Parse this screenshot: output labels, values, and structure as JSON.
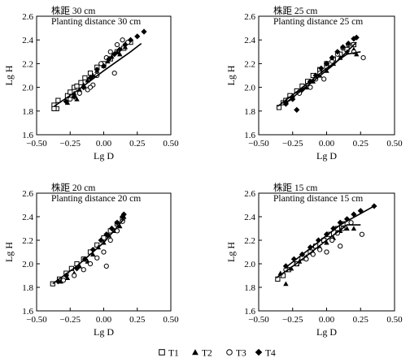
{
  "chart_data": [
    {
      "type": "scatter",
      "title_cn": "株距 30 cm",
      "title_en": "Planting distance 30 cm",
      "xlabel": "Lg D",
      "ylabel": "Lg H",
      "xlim": [
        -0.5,
        0.5
      ],
      "ylim": [
        1.6,
        2.6
      ],
      "xticks": [
        "−0.50",
        "−0.25",
        "0.00",
        "0.25",
        "0.50"
      ],
      "yticks": [
        "1.6",
        "1.8",
        "2.0",
        "2.2",
        "2.4",
        "2.6"
      ],
      "series": [
        {
          "name": "T1",
          "points": [
            [
              -0.37,
              1.85
            ],
            [
              -0.35,
              1.82
            ],
            [
              -0.37,
              1.82
            ],
            [
              -0.34,
              1.89
            ],
            [
              -0.27,
              1.93
            ],
            [
              -0.25,
              1.96
            ],
            [
              -0.22,
              2.0
            ],
            [
              -0.2,
              2.01
            ],
            [
              -0.17,
              2.04
            ],
            [
              -0.14,
              2.08
            ],
            [
              -0.1,
              2.12
            ],
            [
              -0.05,
              2.17
            ],
            [
              0.0,
              2.2
            ],
            [
              0.05,
              2.24
            ],
            [
              0.1,
              2.3
            ],
            [
              0.15,
              2.33
            ],
            [
              0.2,
              2.38
            ]
          ]
        },
        {
          "name": "T2",
          "points": [
            [
              -0.27,
              1.87
            ],
            [
              -0.22,
              1.95
            ],
            [
              -0.2,
              1.9
            ],
            [
              -0.18,
              1.98
            ],
            [
              -0.15,
              2.02
            ],
            [
              -0.12,
              2.06
            ],
            [
              -0.08,
              2.1
            ],
            [
              -0.05,
              2.14
            ],
            [
              0.0,
              2.18
            ],
            [
              0.03,
              2.22
            ],
            [
              0.06,
              2.26
            ],
            [
              0.1,
              2.3
            ],
            [
              0.12,
              2.28
            ],
            [
              0.16,
              2.34
            ]
          ]
        },
        {
          "name": "T3",
          "points": [
            [
              -0.25,
              1.9
            ],
            [
              -0.18,
              1.95
            ],
            [
              -0.12,
              1.98
            ],
            [
              -0.08,
              2.02
            ],
            [
              -0.05,
              2.1
            ],
            [
              -0.02,
              2.2
            ],
            [
              0.02,
              2.25
            ],
            [
              0.05,
              2.3
            ],
            [
              0.08,
              2.12
            ],
            [
              0.1,
              2.36
            ],
            [
              0.14,
              2.4
            ],
            [
              0.18,
              2.38
            ],
            [
              -0.1,
              2.0
            ]
          ]
        },
        {
          "name": "T4",
          "points": [
            [
              -0.28,
              1.88
            ],
            [
              -0.22,
              1.92
            ],
            [
              -0.15,
              2.0
            ],
            [
              -0.1,
              2.08
            ],
            [
              -0.05,
              2.15
            ],
            [
              0.0,
              2.18
            ],
            [
              0.04,
              2.24
            ],
            [
              0.08,
              2.28
            ],
            [
              0.12,
              2.32
            ],
            [
              0.16,
              2.36
            ],
            [
              0.2,
              2.4
            ],
            [
              0.25,
              2.43
            ],
            [
              0.3,
              2.47
            ]
          ]
        }
      ],
      "fits": [
        [
          [
            -0.37,
            1.84
          ],
          [
            -0.2,
            1.97
          ],
          [
            0.0,
            2.14
          ],
          [
            0.2,
            2.3
          ],
          [
            0.28,
            2.37
          ]
        ]
      ]
    },
    {
      "type": "scatter",
      "title_cn": "株距 25 cm",
      "title_en": "Planting distance 25 cm",
      "xlabel": "Lg D",
      "ylabel": "Lg H",
      "xlim": [
        -0.5,
        0.5
      ],
      "ylim": [
        1.6,
        2.6
      ],
      "xticks": [
        "−0.50",
        "−0.25",
        "0.00",
        "0.25",
        "0.50"
      ],
      "yticks": [
        "1.6",
        "1.8",
        "2.0",
        "2.2",
        "2.4",
        "2.6"
      ],
      "series": [
        {
          "name": "T1",
          "points": [
            [
              -0.35,
              1.83
            ],
            [
              -0.32,
              1.87
            ],
            [
              -0.3,
              1.89
            ],
            [
              -0.27,
              1.93
            ],
            [
              -0.22,
              1.97
            ],
            [
              -0.18,
              2.01
            ],
            [
              -0.14,
              2.05
            ],
            [
              -0.1,
              2.1
            ],
            [
              -0.05,
              2.15
            ],
            [
              0.0,
              2.2
            ],
            [
              0.05,
              2.24
            ],
            [
              0.1,
              2.28
            ],
            [
              0.15,
              2.32
            ],
            [
              0.2,
              2.36
            ]
          ]
        },
        {
          "name": "T2",
          "points": [
            [
              -0.3,
              1.88
            ],
            [
              -0.25,
              1.93
            ],
            [
              -0.2,
              1.96
            ],
            [
              -0.15,
              2.0
            ],
            [
              -0.1,
              2.05
            ],
            [
              -0.05,
              2.1
            ],
            [
              0.0,
              2.14
            ],
            [
              0.05,
              2.2
            ],
            [
              0.1,
              2.25
            ],
            [
              0.15,
              2.3
            ],
            [
              0.2,
              2.32
            ],
            [
              0.22,
              2.28
            ]
          ]
        },
        {
          "name": "T3",
          "points": [
            [
              -0.28,
              1.9
            ],
            [
              -0.2,
              1.95
            ],
            [
              -0.12,
              2.0
            ],
            [
              -0.08,
              2.07
            ],
            [
              -0.05,
              2.12
            ],
            [
              0.0,
              2.17
            ],
            [
              0.04,
              2.22
            ],
            [
              0.08,
              2.28
            ],
            [
              0.12,
              2.33
            ],
            [
              0.16,
              2.36
            ],
            [
              0.2,
              2.3
            ],
            [
              0.27,
              2.25
            ],
            [
              -0.02,
              2.07
            ]
          ]
        },
        {
          "name": "T4",
          "points": [
            [
              -0.3,
              1.86
            ],
            [
              -0.25,
              1.9
            ],
            [
              -0.22,
              1.81
            ],
            [
              -0.18,
              1.98
            ],
            [
              -0.12,
              2.05
            ],
            [
              -0.08,
              2.1
            ],
            [
              -0.04,
              2.16
            ],
            [
              0.0,
              2.2
            ],
            [
              0.04,
              2.25
            ],
            [
              0.08,
              2.3
            ],
            [
              0.12,
              2.34
            ],
            [
              0.16,
              2.37
            ],
            [
              0.2,
              2.41
            ],
            [
              0.22,
              2.42
            ]
          ]
        }
      ],
      "fits": [
        [
          [
            -0.36,
            1.84
          ],
          [
            -0.2,
            1.98
          ],
          [
            0.0,
            2.16
          ],
          [
            0.15,
            2.28
          ],
          [
            0.25,
            2.3
          ]
        ],
        [
          [
            -0.3,
            1.87
          ],
          [
            -0.1,
            2.05
          ],
          [
            0.05,
            2.19
          ],
          [
            0.22,
            2.38
          ]
        ]
      ]
    },
    {
      "type": "scatter",
      "title_cn": "株距 20 cm",
      "title_en": "Planting distance 20 cm",
      "xlabel": "Lg D",
      "ylabel": "Lg H",
      "xlim": [
        -0.5,
        0.5
      ],
      "ylim": [
        1.6,
        2.6
      ],
      "xticks": [
        "−0.50",
        "−0.25",
        "0.00",
        "0.25",
        "0.50"
      ],
      "yticks": [
        "1.6",
        "1.8",
        "2.0",
        "2.2",
        "2.4",
        "2.6"
      ],
      "series": [
        {
          "name": "T1",
          "points": [
            [
              -0.38,
              1.83
            ],
            [
              -0.33,
              1.87
            ],
            [
              -0.28,
              1.92
            ],
            [
              -0.24,
              1.96
            ],
            [
              -0.2,
              2.0
            ],
            [
              -0.15,
              2.04
            ],
            [
              -0.1,
              2.1
            ],
            [
              -0.05,
              2.16
            ],
            [
              0.0,
              2.22
            ],
            [
              0.05,
              2.28
            ],
            [
              0.1,
              2.34
            ],
            [
              0.14,
              2.38
            ]
          ]
        },
        {
          "name": "T2",
          "points": [
            [
              -0.32,
              1.85
            ],
            [
              -0.27,
              1.88
            ],
            [
              -0.22,
              1.92
            ],
            [
              -0.18,
              1.98
            ],
            [
              -0.12,
              2.02
            ],
            [
              -0.08,
              2.08
            ],
            [
              -0.04,
              2.14
            ],
            [
              0.0,
              2.18
            ],
            [
              0.04,
              2.24
            ],
            [
              0.08,
              2.28
            ],
            [
              0.12,
              2.32
            ],
            [
              0.15,
              2.4
            ]
          ]
        },
        {
          "name": "T3",
          "points": [
            [
              -0.3,
              1.86
            ],
            [
              -0.22,
              1.9
            ],
            [
              -0.15,
              1.95
            ],
            [
              -0.1,
              2.0
            ],
            [
              -0.05,
              2.05
            ],
            [
              0.0,
              2.1
            ],
            [
              0.02,
              1.98
            ],
            [
              0.05,
              2.2
            ],
            [
              0.1,
              2.28
            ],
            [
              0.14,
              2.36
            ]
          ]
        },
        {
          "name": "T4",
          "points": [
            [
              -0.34,
              1.85
            ],
            [
              -0.28,
              1.9
            ],
            [
              -0.2,
              1.96
            ],
            [
              -0.14,
              2.04
            ],
            [
              -0.08,
              2.12
            ],
            [
              -0.02,
              2.2
            ],
            [
              0.02,
              2.25
            ],
            [
              0.06,
              2.3
            ],
            [
              0.1,
              2.35
            ],
            [
              0.14,
              2.4
            ],
            [
              0.15,
              2.42
            ]
          ]
        }
      ],
      "fits": [
        [
          [
            -0.38,
            1.83
          ],
          [
            -0.2,
            1.98
          ],
          [
            0.0,
            2.18
          ],
          [
            0.15,
            2.38
          ]
        ]
      ]
    },
    {
      "type": "scatter",
      "title_cn": "株距 15 cm",
      "title_en": "Planting distance 15 cm",
      "xlabel": "Lg D",
      "ylabel": "Lg H",
      "xlim": [
        -0.5,
        0.5
      ],
      "ylim": [
        1.6,
        2.6
      ],
      "xticks": [
        "−0.50",
        "−0.25",
        "0.00",
        "0.25",
        "0.50"
      ],
      "yticks": [
        "1.6",
        "1.8",
        "2.0",
        "2.2",
        "2.4",
        "2.6"
      ],
      "series": [
        {
          "name": "T1",
          "points": [
            [
              -0.36,
              1.87
            ],
            [
              -0.32,
              1.9
            ],
            [
              -0.28,
              1.95
            ],
            [
              -0.22,
              2.0
            ],
            [
              -0.18,
              2.05
            ],
            [
              -0.12,
              2.1
            ],
            [
              -0.08,
              2.15
            ],
            [
              -0.02,
              2.2
            ],
            [
              0.02,
              2.25
            ],
            [
              0.08,
              2.3
            ],
            [
              0.12,
              2.34
            ]
          ]
        },
        {
          "name": "T2",
          "points": [
            [
              -0.34,
              1.92
            ],
            [
              -0.3,
              1.83
            ],
            [
              -0.26,
              1.96
            ],
            [
              -0.2,
              2.02
            ],
            [
              -0.15,
              2.06
            ],
            [
              -0.1,
              2.1
            ],
            [
              -0.05,
              2.14
            ],
            [
              0.0,
              2.18
            ],
            [
              0.05,
              2.22
            ],
            [
              0.1,
              2.28
            ],
            [
              0.15,
              2.3
            ],
            [
              0.2,
              2.3
            ]
          ]
        },
        {
          "name": "T3",
          "points": [
            [
              -0.3,
              1.95
            ],
            [
              -0.22,
              2.0
            ],
            [
              -0.15,
              2.04
            ],
            [
              -0.1,
              2.08
            ],
            [
              -0.05,
              2.12
            ],
            [
              0.0,
              2.1
            ],
            [
              0.04,
              2.2
            ],
            [
              0.08,
              2.26
            ],
            [
              0.12,
              2.3
            ],
            [
              0.18,
              2.35
            ],
            [
              0.26,
              2.25
            ],
            [
              0.1,
              2.15
            ]
          ]
        },
        {
          "name": "T4",
          "points": [
            [
              -0.3,
              1.98
            ],
            [
              -0.24,
              2.04
            ],
            [
              -0.18,
              2.08
            ],
            [
              -0.12,
              2.14
            ],
            [
              -0.06,
              2.2
            ],
            [
              0.0,
              2.25
            ],
            [
              0.05,
              2.3
            ],
            [
              0.1,
              2.35
            ],
            [
              0.15,
              2.38
            ],
            [
              0.2,
              2.42
            ],
            [
              0.25,
              2.45
            ],
            [
              0.35,
              2.49
            ]
          ]
        }
      ],
      "fits": [
        [
          [
            -0.37,
            1.88
          ],
          [
            -0.2,
            2.02
          ],
          [
            0.0,
            2.2
          ],
          [
            0.15,
            2.33
          ],
          [
            0.25,
            2.33
          ]
        ],
        [
          [
            -0.3,
            1.97
          ],
          [
            -0.1,
            2.15
          ],
          [
            0.1,
            2.33
          ],
          [
            0.35,
            2.49
          ]
        ]
      ]
    }
  ],
  "legend": [
    {
      "name": "T1",
      "marker": "square-open"
    },
    {
      "name": "T2",
      "marker": "triangle-filled"
    },
    {
      "name": "T3",
      "marker": "circle-open"
    },
    {
      "name": "T4",
      "marker": "diamond-filled"
    }
  ]
}
